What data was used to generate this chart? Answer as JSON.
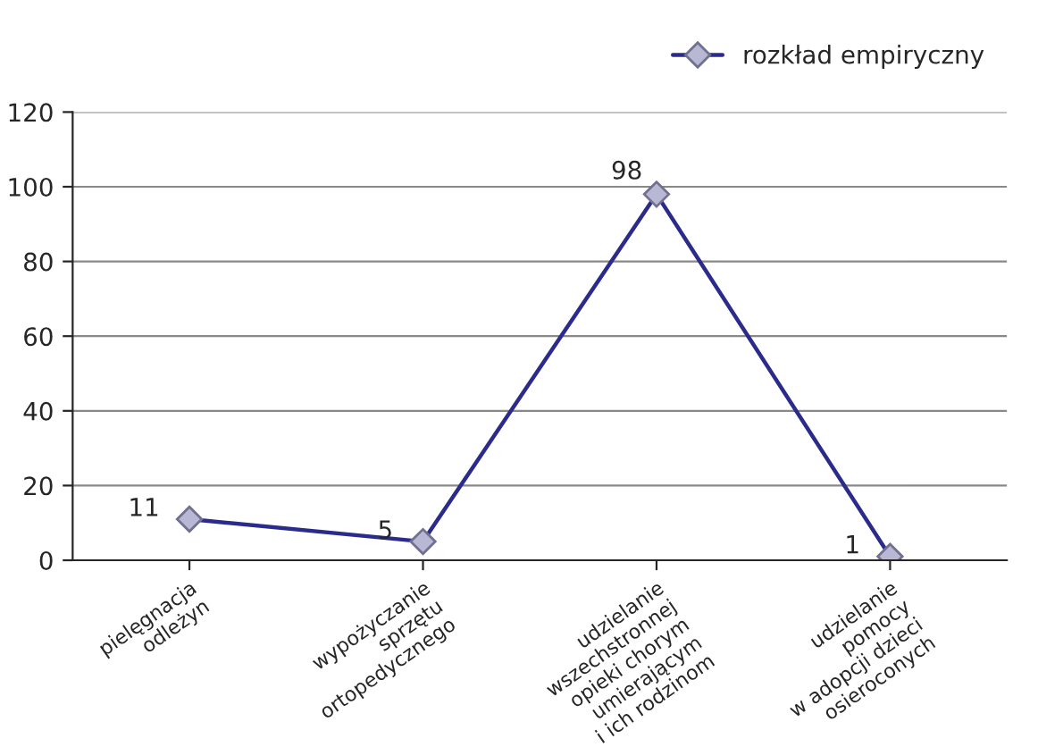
{
  "chart_data": {
    "type": "line",
    "categories": [
      "pielęgnacja\nodleżyn",
      "wypożyczanie\nsprzętu\nortopedycznego",
      "udzielanie\nwszechstronnej\nopieki chorym\numierającym\ni ich rodzinom",
      "udzielanie\npomocy\nw adopcji dzieci\nosieroconych"
    ],
    "series": [
      {
        "name": "rozkład empiryczny",
        "color": "#2b2b8c",
        "values": [
          11,
          5,
          98,
          1
        ]
      }
    ],
    "ylim": [
      0,
      120
    ],
    "yticks": [
      0,
      20,
      40,
      60,
      80,
      100,
      120
    ],
    "grid": "y",
    "legend": "top right",
    "marker": "diamond",
    "line_style": "solid",
    "data_labels": true
  }
}
